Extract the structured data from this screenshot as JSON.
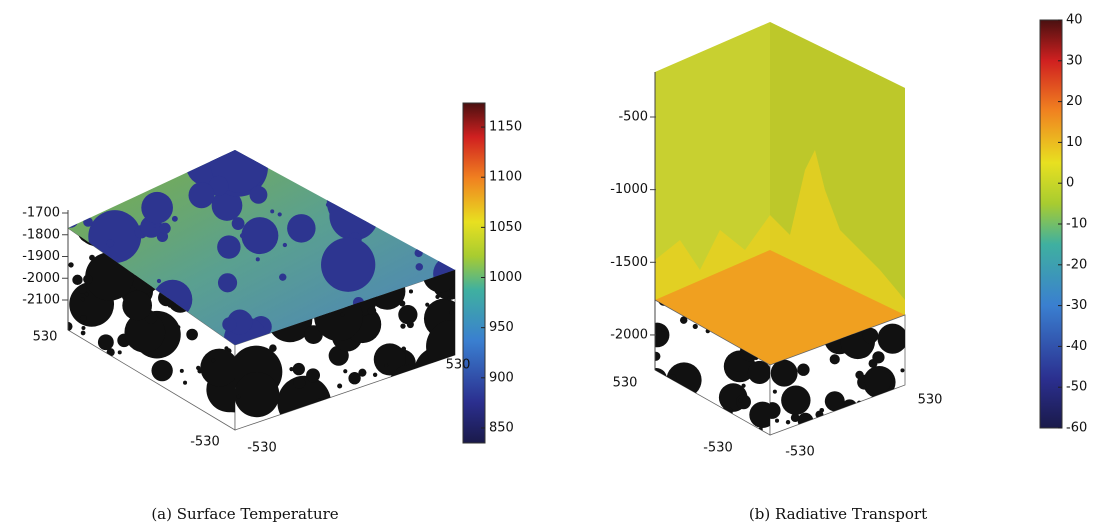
{
  "figures": [
    {
      "caption": "(a) Surface Temperature",
      "z_ticks": [
        -1700,
        -1800,
        -1900,
        -2000,
        -2100
      ],
      "x_ticks": [
        -530,
        530
      ],
      "y_ticks": [
        -530,
        530
      ],
      "colorbar": {
        "lim": [
          835,
          1174
        ],
        "ticks": [
          850,
          900,
          950,
          1000,
          1050,
          1100,
          1150
        ]
      }
    },
    {
      "caption": "(b) Radiative Transport",
      "z_ticks": [
        -500,
        -1000,
        -1500,
        -2000
      ],
      "x_ticks": [
        -530,
        530
      ],
      "y_ticks": [
        -530,
        530
      ],
      "colorbar": {
        "lim": [
          -60,
          40
        ],
        "ticks": [
          -60,
          -50,
          -40,
          -30,
          -20,
          -10,
          0,
          10,
          20,
          30,
          40
        ]
      }
    }
  ]
}
